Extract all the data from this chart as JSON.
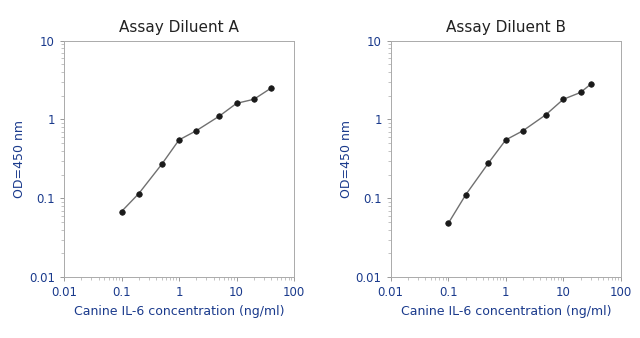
{
  "title_A": "Assay Diluent A",
  "title_B": "Assay Diluent B",
  "xlabel": "Canine IL-6 concentration (ng/ml)",
  "ylabel": "OD=450 nm",
  "xlim": [
    0.01,
    100
  ],
  "ylim": [
    0.01,
    10
  ],
  "xticks": [
    0.01,
    0.1,
    1,
    10,
    100
  ],
  "yticks": [
    0.01,
    0.1,
    1,
    10
  ],
  "xtick_labels": [
    "0.01",
    "0.1",
    "1",
    "10",
    "100"
  ],
  "ytick_labels": [
    "0.01",
    "0.1",
    "1",
    "10"
  ],
  "x_A": [
    0.1,
    0.2,
    0.5,
    1,
    2,
    5,
    10,
    20,
    40
  ],
  "y_A": [
    0.068,
    0.115,
    0.27,
    0.55,
    0.72,
    1.1,
    1.6,
    1.8,
    2.5
  ],
  "x_B": [
    0.1,
    0.2,
    0.5,
    1,
    2,
    5,
    10,
    20,
    30
  ],
  "y_B": [
    0.048,
    0.11,
    0.28,
    0.55,
    0.72,
    1.15,
    1.8,
    2.2,
    2.8
  ],
  "line_color": "#707070",
  "marker_color": "#1a1a1a",
  "title_color": "#222222",
  "label_color": "#1a3a8c",
  "tick_color": "#1a3a8c",
  "spine_color": "#aaaaaa",
  "title_fontsize": 11,
  "label_fontsize": 9,
  "tick_fontsize": 8.5,
  "background_color": "#ffffff"
}
